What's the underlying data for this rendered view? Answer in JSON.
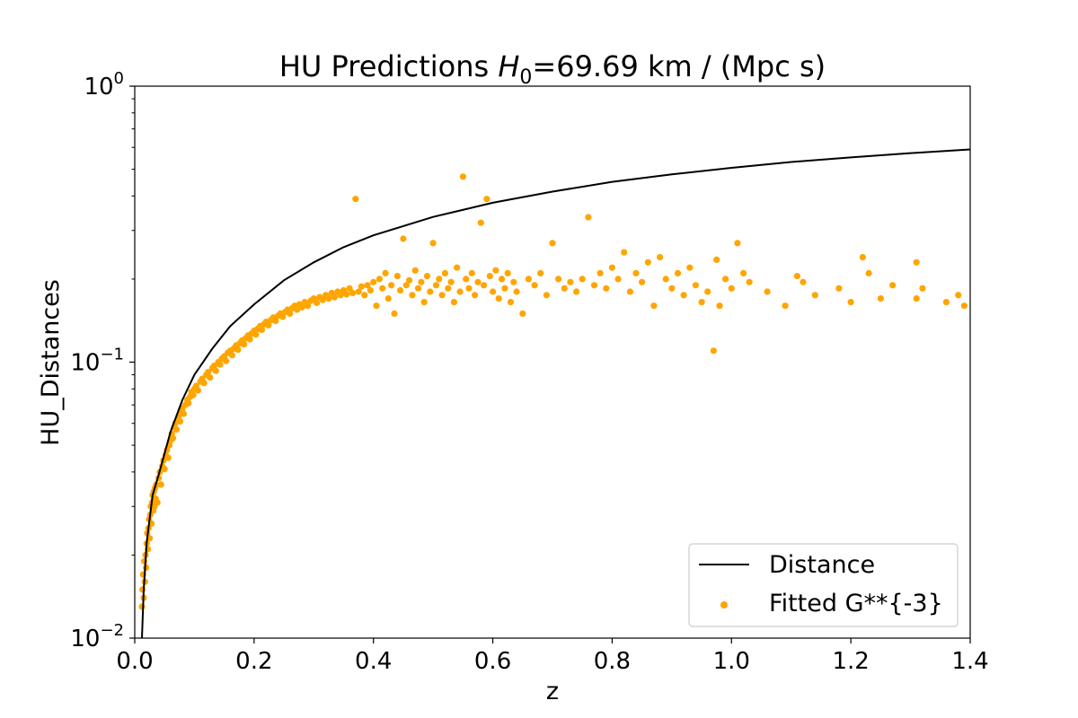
{
  "chart_data": {
    "type": "scatter",
    "title": {
      "prefix": "HU Predictions ",
      "var": "H",
      "sub": "0",
      "suffix": "=69.69 km / (Mpc s)"
    },
    "xlabel": "z",
    "ylabel": "HU_Distances",
    "xlim": [
      0.0,
      1.4
    ],
    "ylim": [
      0.01,
      1.0
    ],
    "yscale": "log",
    "grid": false,
    "legend_position": "lower-right",
    "x_ticks": [
      "0.0",
      "0.2",
      "0.4",
      "0.6",
      "0.8",
      "1.0",
      "1.2",
      "1.4"
    ],
    "y_ticks": [
      {
        "value": 0.01,
        "base": "10",
        "exp": "−2"
      },
      {
        "value": 0.1,
        "base": "10",
        "exp": "−1"
      },
      {
        "value": 1,
        "base": "10",
        "exp": "0"
      }
    ],
    "series": [
      {
        "name": "Distance",
        "kind": "line",
        "color": "#000000",
        "x": [
          0.012,
          0.015,
          0.02,
          0.03,
          0.04,
          0.06,
          0.08,
          0.1,
          0.13,
          0.16,
          0.2,
          0.25,
          0.3,
          0.35,
          0.4,
          0.5,
          0.6,
          0.7,
          0.8,
          0.9,
          1.0,
          1.1,
          1.2,
          1.3,
          1.4
        ],
        "y": [
          0.01,
          0.015,
          0.0222,
          0.033,
          0.039,
          0.056,
          0.073,
          0.09,
          0.112,
          0.135,
          0.162,
          0.198,
          0.23,
          0.261,
          0.288,
          0.336,
          0.378,
          0.415,
          0.45,
          0.479,
          0.506,
          0.531,
          0.552,
          0.572,
          0.59
        ]
      },
      {
        "name": "Fitted G**{-3}",
        "kind": "scatter",
        "color": "#ffa500",
        "points": [
          [
            0.012,
            0.013
          ],
          [
            0.013,
            0.015
          ],
          [
            0.014,
            0.017
          ],
          [
            0.015,
            0.014
          ],
          [
            0.016,
            0.019
          ],
          [
            0.017,
            0.016
          ],
          [
            0.018,
            0.02
          ],
          [
            0.019,
            0.018
          ],
          [
            0.02,
            0.022
          ],
          [
            0.021,
            0.024
          ],
          [
            0.022,
            0.021
          ],
          [
            0.023,
            0.025
          ],
          [
            0.024,
            0.027
          ],
          [
            0.025,
            0.023
          ],
          [
            0.026,
            0.028
          ],
          [
            0.027,
            0.03
          ],
          [
            0.028,
            0.026
          ],
          [
            0.029,
            0.031
          ],
          [
            0.03,
            0.033
          ],
          [
            0.031,
            0.029
          ],
          [
            0.032,
            0.034
          ],
          [
            0.033,
            0.03
          ],
          [
            0.034,
            0.035
          ],
          [
            0.035,
            0.032
          ],
          [
            0.036,
            0.036
          ],
          [
            0.038,
            0.031
          ],
          [
            0.04,
            0.038
          ],
          [
            0.042,
            0.04
          ],
          [
            0.044,
            0.036
          ],
          [
            0.046,
            0.042
          ],
          [
            0.048,
            0.044
          ],
          [
            0.05,
            0.041
          ],
          [
            0.052,
            0.046
          ],
          [
            0.054,
            0.048
          ],
          [
            0.056,
            0.045
          ],
          [
            0.058,
            0.05
          ],
          [
            0.06,
            0.052
          ],
          [
            0.062,
            0.055
          ],
          [
            0.064,
            0.053
          ],
          [
            0.066,
            0.058
          ],
          [
            0.068,
            0.06
          ],
          [
            0.07,
            0.057
          ],
          [
            0.072,
            0.062
          ],
          [
            0.074,
            0.064
          ],
          [
            0.076,
            0.061
          ],
          [
            0.078,
            0.066
          ],
          [
            0.08,
            0.068
          ],
          [
            0.082,
            0.065
          ],
          [
            0.085,
            0.07
          ],
          [
            0.088,
            0.073
          ],
          [
            0.09,
            0.071
          ],
          [
            0.093,
            0.075
          ],
          [
            0.095,
            0.078
          ],
          [
            0.098,
            0.076
          ],
          [
            0.1,
            0.08
          ],
          [
            0.103,
            0.082
          ],
          [
            0.106,
            0.079
          ],
          [
            0.11,
            0.085
          ],
          [
            0.113,
            0.087
          ],
          [
            0.116,
            0.084
          ],
          [
            0.12,
            0.09
          ],
          [
            0.123,
            0.092
          ],
          [
            0.126,
            0.088
          ],
          [
            0.13,
            0.095
          ],
          [
            0.133,
            0.097
          ],
          [
            0.136,
            0.093
          ],
          [
            0.14,
            0.1
          ],
          [
            0.143,
            0.098
          ],
          [
            0.146,
            0.103
          ],
          [
            0.15,
            0.105
          ],
          [
            0.153,
            0.101
          ],
          [
            0.156,
            0.108
          ],
          [
            0.16,
            0.11
          ],
          [
            0.163,
            0.106
          ],
          [
            0.166,
            0.112
          ],
          [
            0.17,
            0.115
          ],
          [
            0.173,
            0.111
          ],
          [
            0.176,
            0.117
          ],
          [
            0.18,
            0.12
          ],
          [
            0.183,
            0.116
          ],
          [
            0.186,
            0.122
          ],
          [
            0.19,
            0.125
          ],
          [
            0.193,
            0.121
          ],
          [
            0.196,
            0.127
          ],
          [
            0.2,
            0.13
          ],
          [
            0.203,
            0.126
          ],
          [
            0.206,
            0.132
          ],
          [
            0.21,
            0.135
          ],
          [
            0.213,
            0.131
          ],
          [
            0.216,
            0.137
          ],
          [
            0.22,
            0.14
          ],
          [
            0.224,
            0.136
          ],
          [
            0.228,
            0.142
          ],
          [
            0.232,
            0.145
          ],
          [
            0.236,
            0.141
          ],
          [
            0.24,
            0.147
          ],
          [
            0.244,
            0.15
          ],
          [
            0.248,
            0.146
          ],
          [
            0.252,
            0.152
          ],
          [
            0.256,
            0.155
          ],
          [
            0.26,
            0.15
          ],
          [
            0.264,
            0.157
          ],
          [
            0.268,
            0.16
          ],
          [
            0.272,
            0.155
          ],
          [
            0.276,
            0.162
          ],
          [
            0.28,
            0.158
          ],
          [
            0.285,
            0.165
          ],
          [
            0.29,
            0.16
          ],
          [
            0.295,
            0.167
          ],
          [
            0.3,
            0.17
          ],
          [
            0.305,
            0.164
          ],
          [
            0.31,
            0.172
          ],
          [
            0.315,
            0.168
          ],
          [
            0.32,
            0.175
          ],
          [
            0.325,
            0.17
          ],
          [
            0.33,
            0.178
          ],
          [
            0.335,
            0.172
          ],
          [
            0.34,
            0.18
          ],
          [
            0.345,
            0.175
          ],
          [
            0.35,
            0.182
          ],
          [
            0.355,
            0.176
          ],
          [
            0.36,
            0.185
          ],
          [
            0.365,
            0.178
          ],
          [
            0.37,
            0.39
          ],
          [
            0.375,
            0.18
          ],
          [
            0.38,
            0.188
          ],
          [
            0.385,
            0.175
          ],
          [
            0.39,
            0.19
          ],
          [
            0.395,
            0.182
          ],
          [
            0.4,
            0.195
          ],
          [
            0.405,
            0.16
          ],
          [
            0.41,
            0.2
          ],
          [
            0.415,
            0.185
          ],
          [
            0.42,
            0.21
          ],
          [
            0.425,
            0.17
          ],
          [
            0.43,
            0.19
          ],
          [
            0.435,
            0.15
          ],
          [
            0.44,
            0.205
          ],
          [
            0.445,
            0.182
          ],
          [
            0.45,
            0.28
          ],
          [
            0.455,
            0.19
          ],
          [
            0.46,
            0.198
          ],
          [
            0.465,
            0.175
          ],
          [
            0.47,
            0.215
          ],
          [
            0.475,
            0.185
          ],
          [
            0.48,
            0.195
          ],
          [
            0.485,
            0.165
          ],
          [
            0.49,
            0.205
          ],
          [
            0.495,
            0.18
          ],
          [
            0.5,
            0.27
          ],
          [
            0.505,
            0.19
          ],
          [
            0.51,
            0.2
          ],
          [
            0.515,
            0.175
          ],
          [
            0.52,
            0.21
          ],
          [
            0.525,
            0.185
          ],
          [
            0.53,
            0.195
          ],
          [
            0.535,
            0.165
          ],
          [
            0.54,
            0.22
          ],
          [
            0.545,
            0.18
          ],
          [
            0.55,
            0.47
          ],
          [
            0.555,
            0.2
          ],
          [
            0.56,
            0.185
          ],
          [
            0.565,
            0.21
          ],
          [
            0.57,
            0.175
          ],
          [
            0.575,
            0.195
          ],
          [
            0.58,
            0.32
          ],
          [
            0.585,
            0.19
          ],
          [
            0.59,
            0.39
          ],
          [
            0.595,
            0.205
          ],
          [
            0.6,
            0.18
          ],
          [
            0.605,
            0.215
          ],
          [
            0.61,
            0.17
          ],
          [
            0.615,
            0.2
          ],
          [
            0.62,
            0.185
          ],
          [
            0.625,
            0.21
          ],
          [
            0.63,
            0.165
          ],
          [
            0.635,
            0.195
          ],
          [
            0.64,
            0.18
          ],
          [
            0.65,
            0.15
          ],
          [
            0.66,
            0.2
          ],
          [
            0.67,
            0.19
          ],
          [
            0.68,
            0.21
          ],
          [
            0.69,
            0.175
          ],
          [
            0.7,
            0.27
          ],
          [
            0.71,
            0.2
          ],
          [
            0.72,
            0.185
          ],
          [
            0.73,
            0.195
          ],
          [
            0.74,
            0.18
          ],
          [
            0.75,
            0.2
          ],
          [
            0.76,
            0.335
          ],
          [
            0.77,
            0.19
          ],
          [
            0.78,
            0.21
          ],
          [
            0.79,
            0.185
          ],
          [
            0.8,
            0.22
          ],
          [
            0.81,
            0.2
          ],
          [
            0.82,
            0.25
          ],
          [
            0.83,
            0.18
          ],
          [
            0.84,
            0.21
          ],
          [
            0.85,
            0.195
          ],
          [
            0.86,
            0.23
          ],
          [
            0.87,
            0.16
          ],
          [
            0.88,
            0.24
          ],
          [
            0.89,
            0.2
          ],
          [
            0.9,
            0.185
          ],
          [
            0.91,
            0.21
          ],
          [
            0.92,
            0.175
          ],
          [
            0.93,
            0.22
          ],
          [
            0.94,
            0.19
          ],
          [
            0.95,
            0.165
          ],
          [
            0.96,
            0.18
          ],
          [
            0.97,
            0.11
          ],
          [
            0.975,
            0.235
          ],
          [
            0.98,
            0.16
          ],
          [
            0.99,
            0.2
          ],
          [
            1.0,
            0.185
          ],
          [
            1.01,
            0.27
          ],
          [
            1.02,
            0.21
          ],
          [
            1.03,
            0.195
          ],
          [
            1.06,
            0.18
          ],
          [
            1.09,
            0.16
          ],
          [
            1.11,
            0.205
          ],
          [
            1.12,
            0.195
          ],
          [
            1.14,
            0.175
          ],
          [
            1.18,
            0.185
          ],
          [
            1.2,
            0.165
          ],
          [
            1.22,
            0.24
          ],
          [
            1.23,
            0.21
          ],
          [
            1.25,
            0.17
          ],
          [
            1.27,
            0.19
          ],
          [
            1.31,
            0.23
          ],
          [
            1.31,
            0.17
          ],
          [
            1.32,
            0.185
          ],
          [
            1.36,
            0.165
          ],
          [
            1.38,
            0.175
          ],
          [
            1.39,
            0.16
          ]
        ]
      }
    ]
  }
}
